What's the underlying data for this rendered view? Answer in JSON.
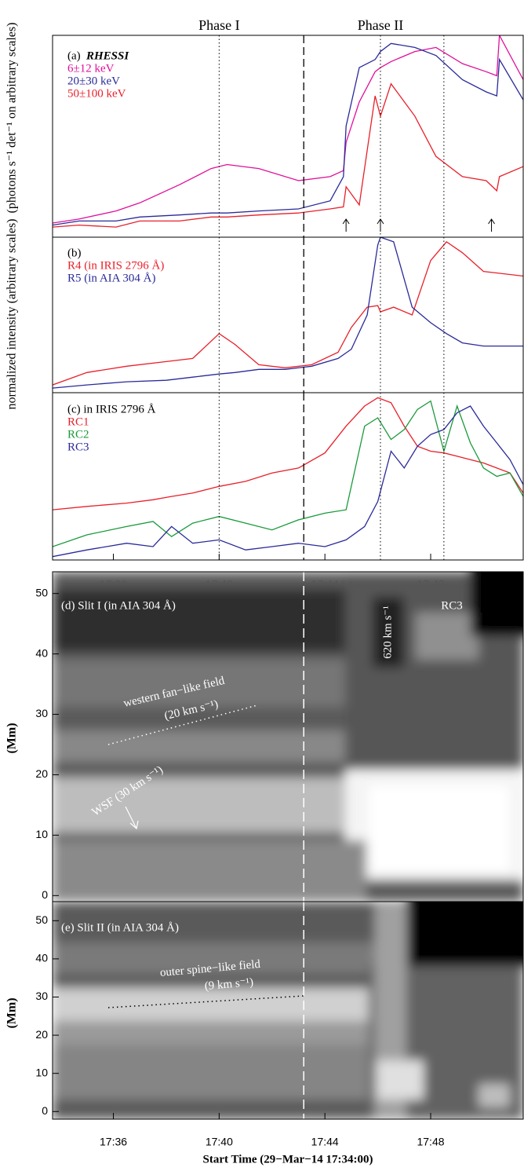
{
  "chart_data": [
    {
      "type": "line",
      "panel_label": "(a)",
      "title": "RHESSI",
      "ylabel": "(photons s⁻¹ det⁻¹ on arbitrary scales)",
      "phase_labels": [
        "Phase I",
        "Phase II"
      ],
      "xlim": [
        -0.3,
        17.5
      ],
      "ylim": [
        0,
        1
      ],
      "dotted_x": [
        6,
        12.1,
        14.5
      ],
      "dashed_x": 9.2,
      "arrows_x": [
        10.8,
        12.1,
        16.3
      ],
      "x": [
        -0.3,
        0.7,
        2.1,
        3.0,
        4.5,
        5.7,
        6.3,
        7.5,
        9.0,
        10.2,
        10.7,
        10.8,
        11.3,
        11.9,
        12.1,
        12.5,
        13.4,
        14.2,
        15.2,
        16.1,
        16.5,
        16.6,
        17.5
      ],
      "series": [
        {
          "name": "6±12 keV",
          "color": "#e0109a",
          "values": [
            0.07,
            0.09,
            0.13,
            0.17,
            0.26,
            0.34,
            0.36,
            0.34,
            0.28,
            0.3,
            0.33,
            0.47,
            0.67,
            0.82,
            0.84,
            0.87,
            0.92,
            0.94,
            0.86,
            0.82,
            0.8,
            1.0,
            0.78
          ]
        },
        {
          "name": "20±30 keV",
          "color": "#2a2a9a",
          "values": [
            0.06,
            0.08,
            0.08,
            0.1,
            0.11,
            0.12,
            0.12,
            0.13,
            0.14,
            0.18,
            0.3,
            0.55,
            0.84,
            0.88,
            0.92,
            0.96,
            0.94,
            0.9,
            0.78,
            0.72,
            0.7,
            0.88,
            0.68
          ]
        },
        {
          "name": "50±100 keV",
          "color": "#e8202a",
          "values": [
            0.05,
            0.06,
            0.05,
            0.08,
            0.08,
            0.1,
            0.1,
            0.11,
            0.12,
            0.14,
            0.15,
            0.25,
            0.16,
            0.7,
            0.6,
            0.76,
            0.6,
            0.4,
            0.3,
            0.28,
            0.23,
            0.3,
            0.35
          ]
        }
      ]
    },
    {
      "type": "line",
      "panel_label": "(b)",
      "ylabel": "normalized intensity (arbitrary scales)",
      "xlim": [
        -0.3,
        17.5
      ],
      "ylim": [
        0,
        1
      ],
      "dotted_x": [
        6,
        12.1,
        14.5
      ],
      "dashed_x": 9.2,
      "x": [
        -0.3,
        1.0,
        2.5,
        4.0,
        5.0,
        6.0,
        6.6,
        7.5,
        8.5,
        9.5,
        10.5,
        11.0,
        11.6,
        12.0,
        12.1,
        12.6,
        13.3,
        14.0,
        14.6,
        15.2,
        16.0,
        17.5
      ],
      "series": [
        {
          "name": "R4 (in IRIS 2796 Å)",
          "color": "#e8202a",
          "values": [
            0.05,
            0.13,
            0.17,
            0.2,
            0.22,
            0.38,
            0.31,
            0.18,
            0.16,
            0.18,
            0.26,
            0.42,
            0.55,
            0.56,
            0.52,
            0.55,
            0.5,
            0.85,
            0.97,
            0.9,
            0.78,
            0.75
          ]
        },
        {
          "name": "R5 (in AIA 304 Å)",
          "color": "#2a2a9a",
          "values": [
            0.03,
            0.05,
            0.07,
            0.08,
            0.1,
            0.12,
            0.13,
            0.15,
            0.15,
            0.17,
            0.22,
            0.28,
            0.5,
            0.95,
            1.0,
            0.97,
            0.55,
            0.45,
            0.38,
            0.32,
            0.3,
            0.3
          ]
        }
      ]
    },
    {
      "type": "line",
      "panel_label": "(c) in IRIS 2796 Å",
      "xlim": [
        -0.3,
        17.5
      ],
      "ylim": [
        0,
        1
      ],
      "xticks": [
        {
          "value": 2,
          "label": "17:36"
        },
        {
          "value": 6,
          "label": "17:40"
        },
        {
          "value": 10,
          "label": "17:44"
        },
        {
          "value": 14,
          "label": "17:48"
        }
      ],
      "dotted_x": [
        6,
        12.1,
        14.5
      ],
      "dashed_x": 9.2,
      "x": [
        -0.3,
        1.0,
        2.5,
        3.5,
        4.2,
        5.0,
        6.0,
        7.0,
        8.0,
        9.0,
        10.0,
        10.8,
        11.5,
        12.0,
        12.5,
        13.0,
        13.5,
        14.0,
        14.5,
        15.0,
        15.5,
        16.0,
        16.5,
        17.0,
        17.5
      ],
      "series": [
        {
          "name": "RC1",
          "color": "#e8202a",
          "values": [
            0.3,
            0.32,
            0.34,
            0.36,
            0.38,
            0.4,
            0.44,
            0.47,
            0.52,
            0.55,
            0.64,
            0.8,
            0.92,
            0.97,
            0.94,
            0.8,
            0.68,
            0.65,
            0.64,
            0.62,
            0.6,
            0.58,
            0.55,
            0.52,
            0.4
          ]
        },
        {
          "name": "RC2",
          "color": "#1a9a3a",
          "values": [
            0.08,
            0.15,
            0.2,
            0.23,
            0.14,
            0.22,
            0.26,
            0.22,
            0.18,
            0.24,
            0.28,
            0.3,
            0.8,
            0.85,
            0.72,
            0.78,
            0.9,
            0.95,
            0.65,
            0.92,
            0.7,
            0.55,
            0.5,
            0.52,
            0.38
          ]
        },
        {
          "name": "RC3",
          "color": "#2a2a9a",
          "values": [
            0.02,
            0.06,
            0.1,
            0.08,
            0.2,
            0.1,
            0.12,
            0.06,
            0.08,
            0.1,
            0.08,
            0.12,
            0.2,
            0.35,
            0.65,
            0.55,
            0.68,
            0.75,
            0.78,
            0.88,
            0.92,
            0.8,
            0.7,
            0.6,
            0.45
          ]
        }
      ]
    },
    {
      "type": "image",
      "panel_label": "(d) Slit I (in AIA 304 Å)",
      "ylabel": "(Mm)",
      "xlim": [
        -0.3,
        17.5
      ],
      "ylim": [
        -1,
        53.6
      ],
      "yticks": [
        0,
        10,
        20,
        30,
        40,
        50
      ],
      "dashed_x": 9.2,
      "annotations": [
        "620 km s⁻¹",
        "RC3",
        "western fan−like field",
        "(20 km s⁻¹)",
        "WSF (30 km s⁻¹)"
      ]
    },
    {
      "type": "image",
      "panel_label": "(e) Slit II (in AIA 304 Å)",
      "ylabel": "(Mm)",
      "xlim": [
        -0.3,
        17.5
      ],
      "ylim": [
        -2,
        55
      ],
      "yticks": [
        0,
        10,
        20,
        30,
        40,
        50
      ],
      "dashed_x": 9.2,
      "xticks": [
        {
          "value": 2,
          "label": "17:36"
        },
        {
          "value": 6,
          "label": "17:40"
        },
        {
          "value": 10,
          "label": "17:44"
        },
        {
          "value": 14,
          "label": "17:48"
        }
      ],
      "xlabel": "Start Time (29−Mar−14 17:34:00)",
      "annotations": [
        "outer spine−like field",
        "(9 km s⁻¹)"
      ]
    }
  ]
}
